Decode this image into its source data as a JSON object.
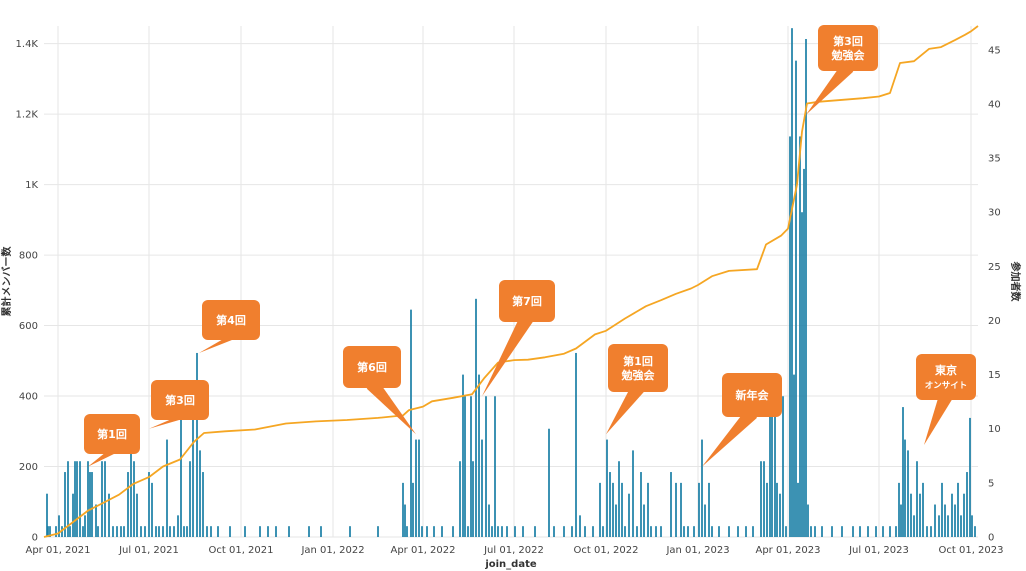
{
  "chart_data": {
    "type": "bar+line",
    "xlabel": "join_date",
    "ylabel_left": "累計メンバー数",
    "ylabel_right": "参加者数",
    "x_range": [
      "2021-03-18",
      "2023-10-08"
    ],
    "x_ticks": [
      {
        "date": "2021-04-01",
        "label": "Apr 01, 2021"
      },
      {
        "date": "2021-07-01",
        "label": "Jul 01, 2021"
      },
      {
        "date": "2021-10-01",
        "label": "Oct 01, 2021"
      },
      {
        "date": "2022-01-01",
        "label": "Jan 01, 2022"
      },
      {
        "date": "2022-04-01",
        "label": "Apr 01, 2022"
      },
      {
        "date": "2022-07-01",
        "label": "Jul 01, 2022"
      },
      {
        "date": "2022-10-01",
        "label": "Oct 01, 2022"
      },
      {
        "date": "2023-01-01",
        "label": "Jan 01, 2023"
      },
      {
        "date": "2023-04-01",
        "label": "Apr 01, 2023"
      },
      {
        "date": "2023-07-01",
        "label": "Jul 01, 2023"
      },
      {
        "date": "2023-10-01",
        "label": "Oct 01, 2023"
      }
    ],
    "y_left": {
      "range": [
        0,
        1450
      ],
      "ticks": [
        0,
        200,
        400,
        600,
        800,
        1000,
        1200,
        1400
      ],
      "tick_labels": [
        "0",
        "200",
        "400",
        "600",
        "800",
        "1K",
        "1.2K",
        "1.4K"
      ]
    },
    "y_right": {
      "range": [
        0,
        47.2
      ],
      "ticks": [
        0,
        5,
        10,
        15,
        20,
        25,
        30,
        35,
        40,
        45
      ],
      "tick_labels": [
        "0",
        "5",
        "10",
        "15",
        "20",
        "25",
        "30",
        "35",
        "40",
        "45"
      ]
    },
    "line_series": {
      "name": "累計メンバー数",
      "axis": "left",
      "color": "#f5a623",
      "points": [
        [
          "2021-03-18",
          0
        ],
        [
          "2021-04-01",
          10
        ],
        [
          "2021-04-15",
          40
        ],
        [
          "2021-05-01",
          75
        ],
        [
          "2021-05-15",
          95
        ],
        [
          "2021-06-01",
          120
        ],
        [
          "2021-06-15",
          150
        ],
        [
          "2021-07-01",
          170
        ],
        [
          "2021-07-15",
          200
        ],
        [
          "2021-08-01",
          220
        ],
        [
          "2021-08-15",
          270
        ],
        [
          "2021-08-25",
          295
        ],
        [
          "2021-09-15",
          300
        ],
        [
          "2021-10-15",
          305
        ],
        [
          "2021-11-15",
          322
        ],
        [
          "2021-12-15",
          328
        ],
        [
          "2022-01-15",
          332
        ],
        [
          "2022-02-15",
          338
        ],
        [
          "2022-03-12",
          345
        ],
        [
          "2022-03-18",
          360
        ],
        [
          "2022-04-01",
          370
        ],
        [
          "2022-04-10",
          385
        ],
        [
          "2022-05-01",
          395
        ],
        [
          "2022-05-20",
          405
        ],
        [
          "2022-06-01",
          450
        ],
        [
          "2022-06-15",
          495
        ],
        [
          "2022-07-01",
          502
        ],
        [
          "2022-07-15",
          503
        ],
        [
          "2022-08-01",
          510
        ],
        [
          "2022-08-20",
          520
        ],
        [
          "2022-09-01",
          535
        ],
        [
          "2022-09-20",
          575
        ],
        [
          "2022-10-01",
          585
        ],
        [
          "2022-10-20",
          620
        ],
        [
          "2022-11-10",
          655
        ],
        [
          "2022-11-25",
          672
        ],
        [
          "2022-12-10",
          690
        ],
        [
          "2022-12-25",
          705
        ],
        [
          "2023-01-01",
          715
        ],
        [
          "2023-01-15",
          740
        ],
        [
          "2023-02-01",
          755
        ],
        [
          "2023-03-01",
          760
        ],
        [
          "2023-03-10",
          830
        ],
        [
          "2023-03-25",
          855
        ],
        [
          "2023-04-01",
          875
        ],
        [
          "2023-04-10",
          1000
        ],
        [
          "2023-04-15",
          1150
        ],
        [
          "2023-04-20",
          1230
        ],
        [
          "2023-05-01",
          1235
        ],
        [
          "2023-06-15",
          1245
        ],
        [
          "2023-07-01",
          1250
        ],
        [
          "2023-07-12",
          1260
        ],
        [
          "2023-07-22",
          1345
        ],
        [
          "2023-08-05",
          1350
        ],
        [
          "2023-08-20",
          1385
        ],
        [
          "2023-09-01",
          1390
        ],
        [
          "2023-09-15",
          1410
        ],
        [
          "2023-09-25",
          1425
        ],
        [
          "2023-10-01",
          1435
        ],
        [
          "2023-10-08",
          1450
        ]
      ]
    },
    "bar_series": {
      "name": "参加者数",
      "axis": "right",
      "color": "#1b7fa6",
      "bars": [
        [
          "2021-03-21",
          4
        ],
        [
          "2021-03-22",
          1
        ],
        [
          "2021-03-24",
          1
        ],
        [
          "2021-03-30",
          1
        ],
        [
          "2021-04-02",
          2
        ],
        [
          "2021-04-05",
          1
        ],
        [
          "2021-04-08",
          6
        ],
        [
          "2021-04-11",
          7
        ],
        [
          "2021-04-13",
          1
        ],
        [
          "2021-04-16",
          4
        ],
        [
          "2021-04-18",
          7
        ],
        [
          "2021-04-20",
          7
        ],
        [
          "2021-04-23",
          7
        ],
        [
          "2021-04-26",
          1
        ],
        [
          "2021-04-28",
          2
        ],
        [
          "2021-05-01",
          7
        ],
        [
          "2021-05-03",
          6
        ],
        [
          "2021-05-05",
          6
        ],
        [
          "2021-05-09",
          3
        ],
        [
          "2021-05-11",
          1
        ],
        [
          "2021-05-15",
          7
        ],
        [
          "2021-05-18",
          7
        ],
        [
          "2021-05-22",
          4
        ],
        [
          "2021-05-26",
          1
        ],
        [
          "2021-05-30",
          1
        ],
        [
          "2021-06-03",
          1
        ],
        [
          "2021-06-06",
          1
        ],
        [
          "2021-06-10",
          6
        ],
        [
          "2021-06-13",
          8
        ],
        [
          "2021-06-16",
          7
        ],
        [
          "2021-06-19",
          4
        ],
        [
          "2021-06-23",
          1
        ],
        [
          "2021-06-27",
          1
        ],
        [
          "2021-07-01",
          6
        ],
        [
          "2021-07-04",
          5
        ],
        [
          "2021-07-08",
          1
        ],
        [
          "2021-07-11",
          1
        ],
        [
          "2021-07-15",
          1
        ],
        [
          "2021-07-19",
          9
        ],
        [
          "2021-07-22",
          1
        ],
        [
          "2021-07-26",
          1
        ],
        [
          "2021-07-30",
          2
        ],
        [
          "2021-08-02",
          14
        ],
        [
          "2021-08-05",
          1
        ],
        [
          "2021-08-08",
          1
        ],
        [
          "2021-08-11",
          7
        ],
        [
          "2021-08-14",
          13
        ],
        [
          "2021-08-18",
          17
        ],
        [
          "2021-08-21",
          8
        ],
        [
          "2021-08-24",
          6
        ],
        [
          "2021-08-28",
          1
        ],
        [
          "2021-09-01",
          1
        ],
        [
          "2021-09-08",
          1
        ],
        [
          "2021-09-20",
          1
        ],
        [
          "2021-10-05",
          1
        ],
        [
          "2021-10-20",
          1
        ],
        [
          "2021-10-28",
          1
        ],
        [
          "2021-11-05",
          1
        ],
        [
          "2021-11-18",
          1
        ],
        [
          "2021-12-08",
          1
        ],
        [
          "2021-12-20",
          1
        ],
        [
          "2022-01-18",
          1
        ],
        [
          "2022-02-15",
          1
        ],
        [
          "2022-03-12",
          5
        ],
        [
          "2022-03-14",
          3
        ],
        [
          "2022-03-16",
          1
        ],
        [
          "2022-03-20",
          21
        ],
        [
          "2022-03-22",
          5
        ],
        [
          "2022-03-25",
          9
        ],
        [
          "2022-03-28",
          9
        ],
        [
          "2022-03-31",
          1
        ],
        [
          "2022-04-05",
          1
        ],
        [
          "2022-04-12",
          1
        ],
        [
          "2022-04-20",
          1
        ],
        [
          "2022-05-01",
          1
        ],
        [
          "2022-05-08",
          7
        ],
        [
          "2022-05-11",
          15
        ],
        [
          "2022-05-13",
          13
        ],
        [
          "2022-05-16",
          1
        ],
        [
          "2022-05-19",
          13
        ],
        [
          "2022-05-21",
          7
        ],
        [
          "2022-05-24",
          22
        ],
        [
          "2022-05-27",
          15
        ],
        [
          "2022-05-30",
          9
        ],
        [
          "2022-06-03",
          13
        ],
        [
          "2022-06-06",
          3
        ],
        [
          "2022-06-09",
          1
        ],
        [
          "2022-06-12",
          13
        ],
        [
          "2022-06-15",
          1
        ],
        [
          "2022-06-19",
          1
        ],
        [
          "2022-06-24",
          1
        ],
        [
          "2022-07-02",
          1
        ],
        [
          "2022-07-10",
          1
        ],
        [
          "2022-07-22",
          1
        ],
        [
          "2022-08-05",
          10
        ],
        [
          "2022-08-10",
          1
        ],
        [
          "2022-08-20",
          1
        ],
        [
          "2022-08-28",
          1
        ],
        [
          "2022-09-01",
          17
        ],
        [
          "2022-09-05",
          2
        ],
        [
          "2022-09-10",
          1
        ],
        [
          "2022-09-18",
          1
        ],
        [
          "2022-09-25",
          5
        ],
        [
          "2022-09-28",
          1
        ],
        [
          "2022-10-02",
          9
        ],
        [
          "2022-10-05",
          6
        ],
        [
          "2022-10-08",
          5
        ],
        [
          "2022-10-11",
          3
        ],
        [
          "2022-10-14",
          7
        ],
        [
          "2022-10-17",
          5
        ],
        [
          "2022-10-20",
          1
        ],
        [
          "2022-10-24",
          4
        ],
        [
          "2022-10-28",
          8
        ],
        [
          "2022-11-01",
          1
        ],
        [
          "2022-11-05",
          6
        ],
        [
          "2022-11-08",
          3
        ],
        [
          "2022-11-12",
          5
        ],
        [
          "2022-11-15",
          1
        ],
        [
          "2022-11-20",
          1
        ],
        [
          "2022-11-25",
          1
        ],
        [
          "2022-12-05",
          6
        ],
        [
          "2022-12-10",
          5
        ],
        [
          "2022-12-15",
          5
        ],
        [
          "2022-12-18",
          1
        ],
        [
          "2022-12-22",
          1
        ],
        [
          "2022-12-28",
          1
        ],
        [
          "2023-01-02",
          5
        ],
        [
          "2023-01-05",
          9
        ],
        [
          "2023-01-08",
          3
        ],
        [
          "2023-01-12",
          5
        ],
        [
          "2023-01-15",
          1
        ],
        [
          "2023-01-22",
          1
        ],
        [
          "2023-02-01",
          1
        ],
        [
          "2023-02-10",
          1
        ],
        [
          "2023-02-18",
          1
        ],
        [
          "2023-02-25",
          1
        ],
        [
          "2023-03-05",
          7
        ],
        [
          "2023-03-08",
          7
        ],
        [
          "2023-03-11",
          5
        ],
        [
          "2023-03-14",
          13
        ],
        [
          "2023-03-16",
          12
        ],
        [
          "2023-03-19",
          13
        ],
        [
          "2023-03-21",
          5
        ],
        [
          "2023-03-24",
          4
        ],
        [
          "2023-03-27",
          13
        ],
        [
          "2023-03-30",
          1
        ],
        [
          "2023-04-03",
          37
        ],
        [
          "2023-04-05",
          47
        ],
        [
          "2023-04-07",
          15
        ],
        [
          "2023-04-09",
          44
        ],
        [
          "2023-04-11",
          5
        ],
        [
          "2023-04-13",
          37
        ],
        [
          "2023-04-15",
          30
        ],
        [
          "2023-04-17",
          34
        ],
        [
          "2023-04-19",
          46
        ],
        [
          "2023-04-21",
          3
        ],
        [
          "2023-04-24",
          1
        ],
        [
          "2023-04-28",
          1
        ],
        [
          "2023-05-05",
          1
        ],
        [
          "2023-05-15",
          1
        ],
        [
          "2023-05-25",
          1
        ],
        [
          "2023-06-05",
          1
        ],
        [
          "2023-06-12",
          1
        ],
        [
          "2023-06-20",
          1
        ],
        [
          "2023-06-28",
          1
        ],
        [
          "2023-07-05",
          1
        ],
        [
          "2023-07-12",
          1
        ],
        [
          "2023-07-18",
          1
        ],
        [
          "2023-07-21",
          5
        ],
        [
          "2023-07-23",
          3
        ],
        [
          "2023-07-25",
          12
        ],
        [
          "2023-07-27",
          9
        ],
        [
          "2023-07-30",
          8
        ],
        [
          "2023-08-02",
          4
        ],
        [
          "2023-08-05",
          2
        ],
        [
          "2023-08-08",
          7
        ],
        [
          "2023-08-11",
          4
        ],
        [
          "2023-08-14",
          5
        ],
        [
          "2023-08-18",
          1
        ],
        [
          "2023-08-22",
          1
        ],
        [
          "2023-08-26",
          3
        ],
        [
          "2023-08-30",
          2
        ],
        [
          "2023-09-02",
          5
        ],
        [
          "2023-09-05",
          3
        ],
        [
          "2023-09-08",
          2
        ],
        [
          "2023-09-12",
          4
        ],
        [
          "2023-09-15",
          3
        ],
        [
          "2023-09-18",
          5
        ],
        [
          "2023-09-21",
          2
        ],
        [
          "2023-09-24",
          4
        ],
        [
          "2023-09-27",
          6
        ],
        [
          "2023-09-30",
          11
        ],
        [
          "2023-10-02",
          2
        ],
        [
          "2023-10-05",
          1
        ]
      ]
    },
    "annotations": [
      {
        "lines": [
          "第1回"
        ],
        "point_date": "2021-05-01",
        "point_value": 6.5
      },
      {
        "lines": [
          "第3回"
        ],
        "point_date": "2021-07-01",
        "point_value": 10
      },
      {
        "lines": [
          "第4回"
        ],
        "point_date": "2021-08-20",
        "point_value": 17
      },
      {
        "lines": [
          "第6回"
        ],
        "point_date": "2022-03-25",
        "point_value": 9.5
      },
      {
        "lines": [
          "第7回"
        ],
        "point_date": "2022-05-30",
        "point_value": 13
      },
      {
        "lines": [
          "第1回",
          "勉強会"
        ],
        "point_date": "2022-10-01",
        "point_value": 9.5
      },
      {
        "lines": [
          "新年会"
        ],
        "point_date": "2023-01-05",
        "point_value": 6.5
      },
      {
        "lines": [
          "第3回",
          "勉強会"
        ],
        "point_date": "2023-04-19",
        "point_value": 39
      },
      {
        "lines": [
          "東京",
          "オンサイト"
        ],
        "point_date": "2023-08-15",
        "point_value": 8.5
      }
    ],
    "colors": {
      "callout": "#f07f2e",
      "grid": "#e6e6e6"
    }
  }
}
